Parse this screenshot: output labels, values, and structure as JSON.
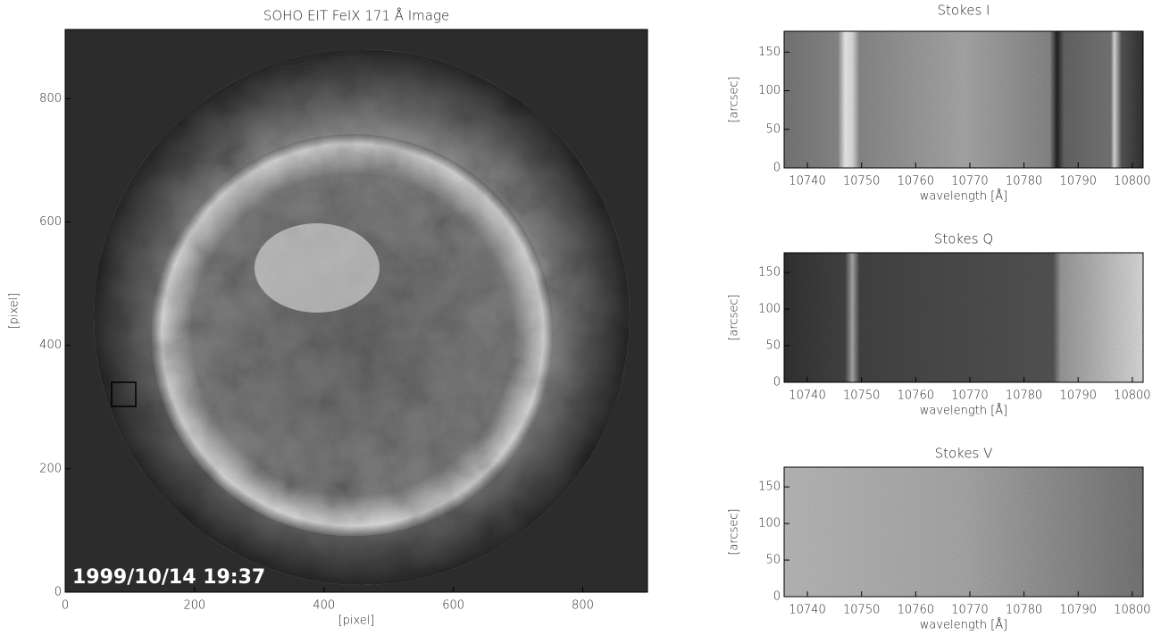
{
  "chart_data": [
    {
      "type": "image",
      "title": "SOHO EIT FeIX 171 Å Image",
      "xlabel": "[pixel]",
      "ylabel": "[pixel]",
      "xlim": [
        0,
        900
      ],
      "ylim": [
        0,
        912
      ],
      "xticks": [
        0,
        200,
        400,
        600,
        800
      ],
      "yticks": [
        0,
        200,
        400,
        600,
        800
      ],
      "annotation": "1999/10/14 19:37"
    },
    {
      "type": "image",
      "title": "Stokes I",
      "xlabel": "wavelength [Å]",
      "ylabel": "[arcsec]",
      "xlim": [
        10735.7,
        10802
      ],
      "ylim": [
        0,
        177
      ],
      "xticks": [
        10740,
        10750,
        10760,
        10770,
        10780,
        10790,
        10800
      ],
      "yticks": [
        0,
        50,
        100,
        150
      ]
    },
    {
      "type": "image",
      "title": "Stokes Q",
      "xlabel": "wavelength [Å]",
      "ylabel": "[arcsec]",
      "xlim": [
        10735.7,
        10802
      ],
      "ylim": [
        0,
        177
      ],
      "xticks": [
        10740,
        10750,
        10760,
        10770,
        10780,
        10790,
        10800
      ],
      "yticks": [
        0,
        50,
        100,
        150
      ]
    },
    {
      "type": "image",
      "title": "Stokes V",
      "xlabel": "wavelength [Å]",
      "ylabel": "[arcsec]",
      "xlim": [
        10735.7,
        10802
      ],
      "ylim": [
        0,
        177
      ],
      "xticks": [
        10740,
        10750,
        10760,
        10770,
        10780,
        10790,
        10800
      ],
      "yticks": [
        0,
        50,
        100,
        150
      ]
    }
  ]
}
